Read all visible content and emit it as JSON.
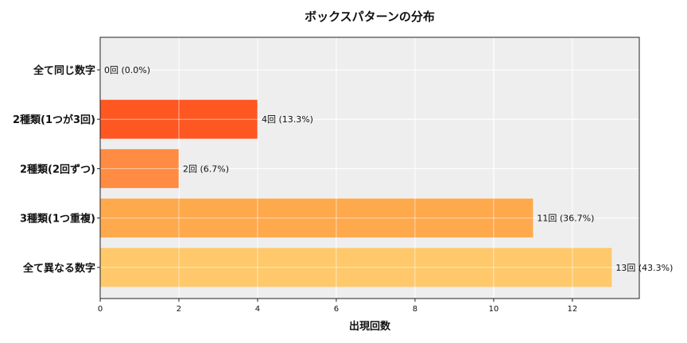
{
  "chart_data": {
    "type": "bar",
    "orientation": "horizontal",
    "title": "ボックスパターンの分布",
    "xlabel": "出現回数",
    "ylabel": "",
    "categories": [
      "全て同じ数字",
      "2種類(1つが3回)",
      "2種類(2回ずつ)",
      "3種類(1つ重複)",
      "全て異なる数字"
    ],
    "values": [
      0,
      4,
      2,
      11,
      13
    ],
    "data_labels": [
      "0回 (0.0%)",
      "4回 (13.3%)",
      "2回 (6.7%)",
      "11回 (36.7%)",
      "13回 (43.3%)"
    ],
    "colors": [
      "#ff5722",
      "#ff5722",
      "#ff8c42",
      "#ffa94d",
      "#ffc96b"
    ],
    "xlim": [
      0,
      13.7
    ],
    "xticks": [
      0,
      2,
      4,
      6,
      8,
      10,
      12
    ],
    "grid": true,
    "plot_background": "#eeeeee"
  }
}
